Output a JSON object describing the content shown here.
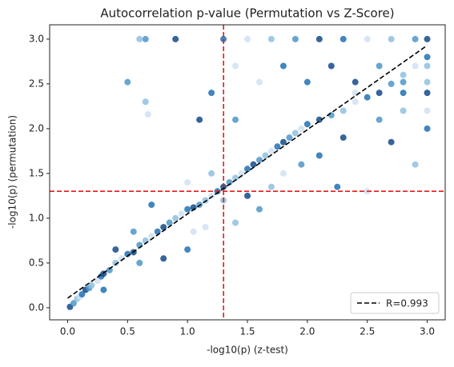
{
  "chart_data": {
    "type": "scatter",
    "title": "Autocorrelation p-value (Permutation vs Z-Score)",
    "x_label": "-log10(p) (z-test)",
    "y_label": "-log10(p) (permutation)",
    "xlim": [
      -0.15,
      3.15
    ],
    "ylim": [
      -0.135,
      3.16
    ],
    "xticks": [
      {
        "value": 0,
        "label": "0.0"
      },
      0.5,
      {
        "value": 1,
        "label": "1.0"
      },
      1.5,
      {
        "value": 2,
        "label": "2.0"
      },
      2.5,
      {
        "value": 3,
        "label": "3.0"
      }
    ],
    "yticks": [
      {
        "value": 0,
        "label": "0.0"
      },
      0.5,
      {
        "value": 1,
        "label": "1.0"
      },
      1.5,
      {
        "value": 2,
        "label": "2.0"
      },
      2.5,
      {
        "value": 3,
        "label": "3.0"
      }
    ],
    "cmap": [
      "#f7fbff",
      "#c6dbef",
      "#6baed6",
      "#2171b5",
      "#08306b"
    ],
    "x": [
      0.02,
      0.05,
      0.08,
      0.1,
      0.12,
      0.15,
      0.18,
      0.2,
      0.25,
      0.28,
      0.3,
      0.35,
      0.4,
      0.45,
      0.5,
      0.55,
      0.6,
      0.65,
      0.7,
      0.75,
      0.8,
      0.85,
      0.9,
      0.95,
      1.0,
      1.05,
      1.1,
      1.15,
      1.2,
      1.25,
      1.3,
      1.35,
      1.4,
      1.45,
      1.5,
      1.55,
      1.6,
      1.65,
      1.7,
      1.75,
      1.8,
      1.85,
      1.9,
      1.95,
      2.0,
      2.1,
      2.2,
      2.3,
      2.4,
      2.5,
      2.6,
      2.7,
      2.8,
      2.9,
      3.0,
      3.0,
      2.9,
      2.7,
      2.5,
      2.3,
      2.1,
      1.9,
      1.7,
      1.5,
      1.3,
      0.9,
      0.65,
      0.6,
      1.4,
      1.8,
      2.2,
      2.6,
      3.0,
      1.6,
      2.0,
      2.4,
      2.8,
      3.0,
      2.4,
      2.8,
      3.0,
      0.5,
      0.65,
      0.67,
      1.2,
      1.1,
      1.4,
      2.9,
      2.5,
      2.25,
      1.5,
      1.6,
      1.4,
      1.05,
      1.0,
      0.8,
      0.6,
      1.2,
      1.0,
      0.7,
      0.4,
      0.55,
      1.3,
      1.8,
      2.1,
      2.3,
      2.6,
      2.8,
      3.0,
      3.0,
      2.7,
      1.95,
      1.7,
      1.15,
      0.3
    ],
    "y": [
      0.01,
      0.05,
      0.1,
      0.12,
      0.15,
      0.2,
      0.22,
      0.25,
      0.3,
      0.35,
      0.38,
      0.42,
      0.5,
      0.55,
      0.6,
      0.62,
      0.7,
      0.75,
      0.8,
      0.85,
      0.9,
      0.95,
      1.0,
      1.05,
      1.1,
      1.12,
      1.15,
      1.2,
      1.25,
      1.3,
      1.35,
      1.4,
      1.45,
      1.5,
      1.55,
      1.6,
      1.65,
      1.7,
      1.75,
      1.8,
      1.85,
      1.9,
      1.95,
      2.0,
      2.05,
      2.1,
      2.15,
      2.2,
      2.3,
      2.35,
      2.4,
      2.5,
      2.6,
      2.7,
      2.8,
      3.0,
      3.0,
      3.0,
      3.0,
      3.0,
      3.0,
      3.0,
      3.0,
      3.0,
      3.0,
      3.0,
      3.0,
      3.0,
      2.7,
      2.7,
      2.7,
      2.7,
      2.7,
      2.52,
      2.52,
      2.52,
      2.52,
      2.52,
      2.4,
      2.4,
      2.4,
      2.52,
      2.3,
      2.16,
      2.4,
      2.1,
      2.1,
      1.6,
      1.3,
      1.35,
      1.25,
      1.1,
      0.95,
      0.85,
      0.65,
      0.55,
      0.5,
      1.5,
      1.4,
      1.15,
      0.65,
      0.85,
      1.2,
      1.5,
      1.7,
      1.9,
      2.1,
      2.2,
      2.2,
      2.0,
      1.85,
      1.6,
      1.35,
      0.9,
      0.2
    ],
    "c": [
      0.9,
      0.6,
      0.4,
      0.2,
      0.75,
      0.9,
      0.6,
      0.4,
      0.2,
      0.75,
      0.9,
      0.6,
      0.4,
      0.2,
      0.75,
      0.9,
      0.6,
      0.4,
      0.2,
      0.75,
      0.9,
      0.6,
      0.4,
      0.2,
      0.75,
      0.9,
      0.6,
      0.4,
      0.2,
      0.75,
      0.9,
      0.6,
      0.4,
      0.2,
      0.75,
      0.9,
      0.6,
      0.4,
      0.2,
      0.75,
      0.9,
      0.6,
      0.4,
      0.2,
      0.75,
      0.9,
      0.6,
      0.4,
      0.2,
      0.75,
      0.9,
      0.6,
      0.4,
      0.2,
      0.75,
      0.9,
      0.6,
      0.4,
      0.2,
      0.75,
      0.9,
      0.6,
      0.4,
      0.2,
      0.75,
      0.9,
      0.6,
      0.4,
      0.2,
      0.75,
      0.9,
      0.6,
      0.4,
      0.2,
      0.75,
      0.9,
      0.6,
      0.4,
      0.2,
      0.75,
      0.9,
      0.6,
      0.4,
      0.2,
      0.75,
      0.9,
      0.6,
      0.4,
      0.2,
      0.75,
      0.9,
      0.6,
      0.4,
      0.2,
      0.75,
      0.9,
      0.6,
      0.4,
      0.2,
      0.75,
      0.9,
      0.6,
      0.4,
      0.2,
      0.75,
      0.9,
      0.6,
      0.4,
      0.2,
      0.75,
      0.9,
      0.6,
      0.4,
      0.2,
      0.75
    ],
    "vline_x": 1.301,
    "hline_y": 1.301,
    "threshold_color": "#e41a1c",
    "fit": {
      "label": "R=0.993",
      "x": [
        0,
        3
      ],
      "y": [
        0.107,
        2.93
      ],
      "color": "#000000"
    },
    "legend": "lower right"
  }
}
